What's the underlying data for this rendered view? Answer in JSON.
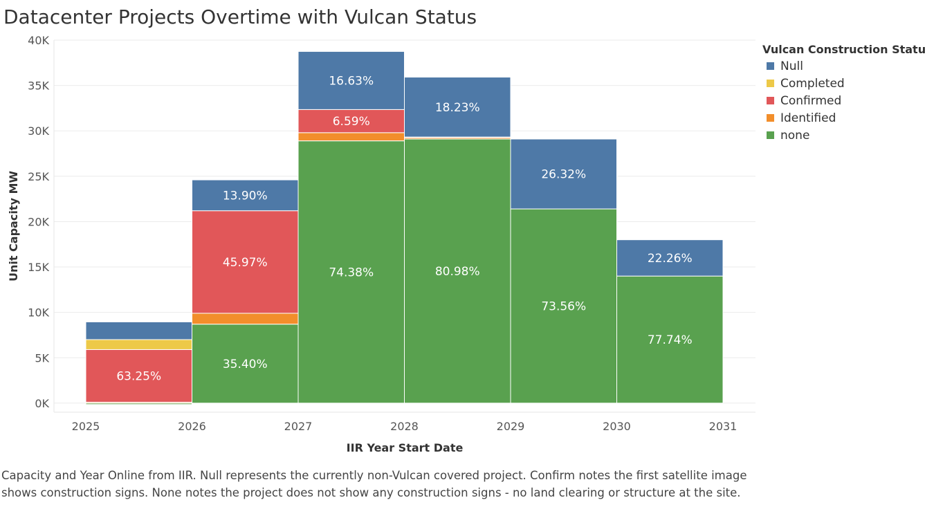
{
  "title": "Datacenter Projects Overtime with Vulcan Status",
  "legend": {
    "title": "Vulcan Construction Status",
    "items": [
      {
        "label": "Null",
        "color": "#4e79a7"
      },
      {
        "label": "Completed",
        "color": "#edc948"
      },
      {
        "label": "Confirmed",
        "color": "#e15759"
      },
      {
        "label": "Identified",
        "color": "#f28e2b"
      },
      {
        "label": "none",
        "color": "#59a14f"
      }
    ]
  },
  "caption": "Capacity and Year Online from IIR. Null represents the currently non-Vulcan covered project.  Confirm notes the first satellite image shows construction signs.  None notes the project does not show any construction signs - no land clearing or structure at the site.",
  "chart_data": {
    "type": "bar",
    "xlabel": "IIR Year Start Date",
    "ylabel": "Unit Capacity MW",
    "x_ticks": [
      "2025",
      "2026",
      "2027",
      "2028",
      "2029",
      "2030",
      "2031"
    ],
    "y_ticks": [
      "0K",
      "5K",
      "10K",
      "15K",
      "20K",
      "25K",
      "30K",
      "35K",
      "40K"
    ],
    "ylim": [
      -1000,
      40000
    ],
    "grid": true,
    "legend_position": "right",
    "categories": [
      "2025",
      "2026",
      "2027",
      "2028",
      "2029",
      "2030"
    ],
    "series": [
      {
        "name": "none",
        "color": "#59a14f",
        "values": [
          -150,
          8700,
          28900,
          29100,
          21400,
          14000
        ],
        "labels": [
          "",
          "35.40%",
          "74.38%",
          "80.98%",
          "73.56%",
          "77.74%"
        ]
      },
      {
        "name": "Identified",
        "color": "#f28e2b",
        "values": [
          100,
          1200,
          900,
          150,
          0,
          0
        ],
        "labels": [
          "",
          "",
          "",
          "",
          "",
          ""
        ]
      },
      {
        "name": "Confirmed",
        "color": "#e15759",
        "values": [
          5800,
          11300,
          2550,
          70,
          0,
          0
        ],
        "labels": [
          "63.25%",
          "45.97%",
          "6.59%",
          "",
          "",
          ""
        ]
      },
      {
        "name": "Completed",
        "color": "#edc948",
        "values": [
          1100,
          0,
          0,
          0,
          0,
          0
        ],
        "labels": [
          "",
          "",
          "",
          "",
          "",
          ""
        ]
      },
      {
        "name": "Null",
        "color": "#4e79a7",
        "values": [
          1950,
          3400,
          6400,
          6600,
          7700,
          4000
        ],
        "labels": [
          "",
          "13.90%",
          "16.63%",
          "18.23%",
          "26.32%",
          "22.26%"
        ]
      }
    ]
  }
}
